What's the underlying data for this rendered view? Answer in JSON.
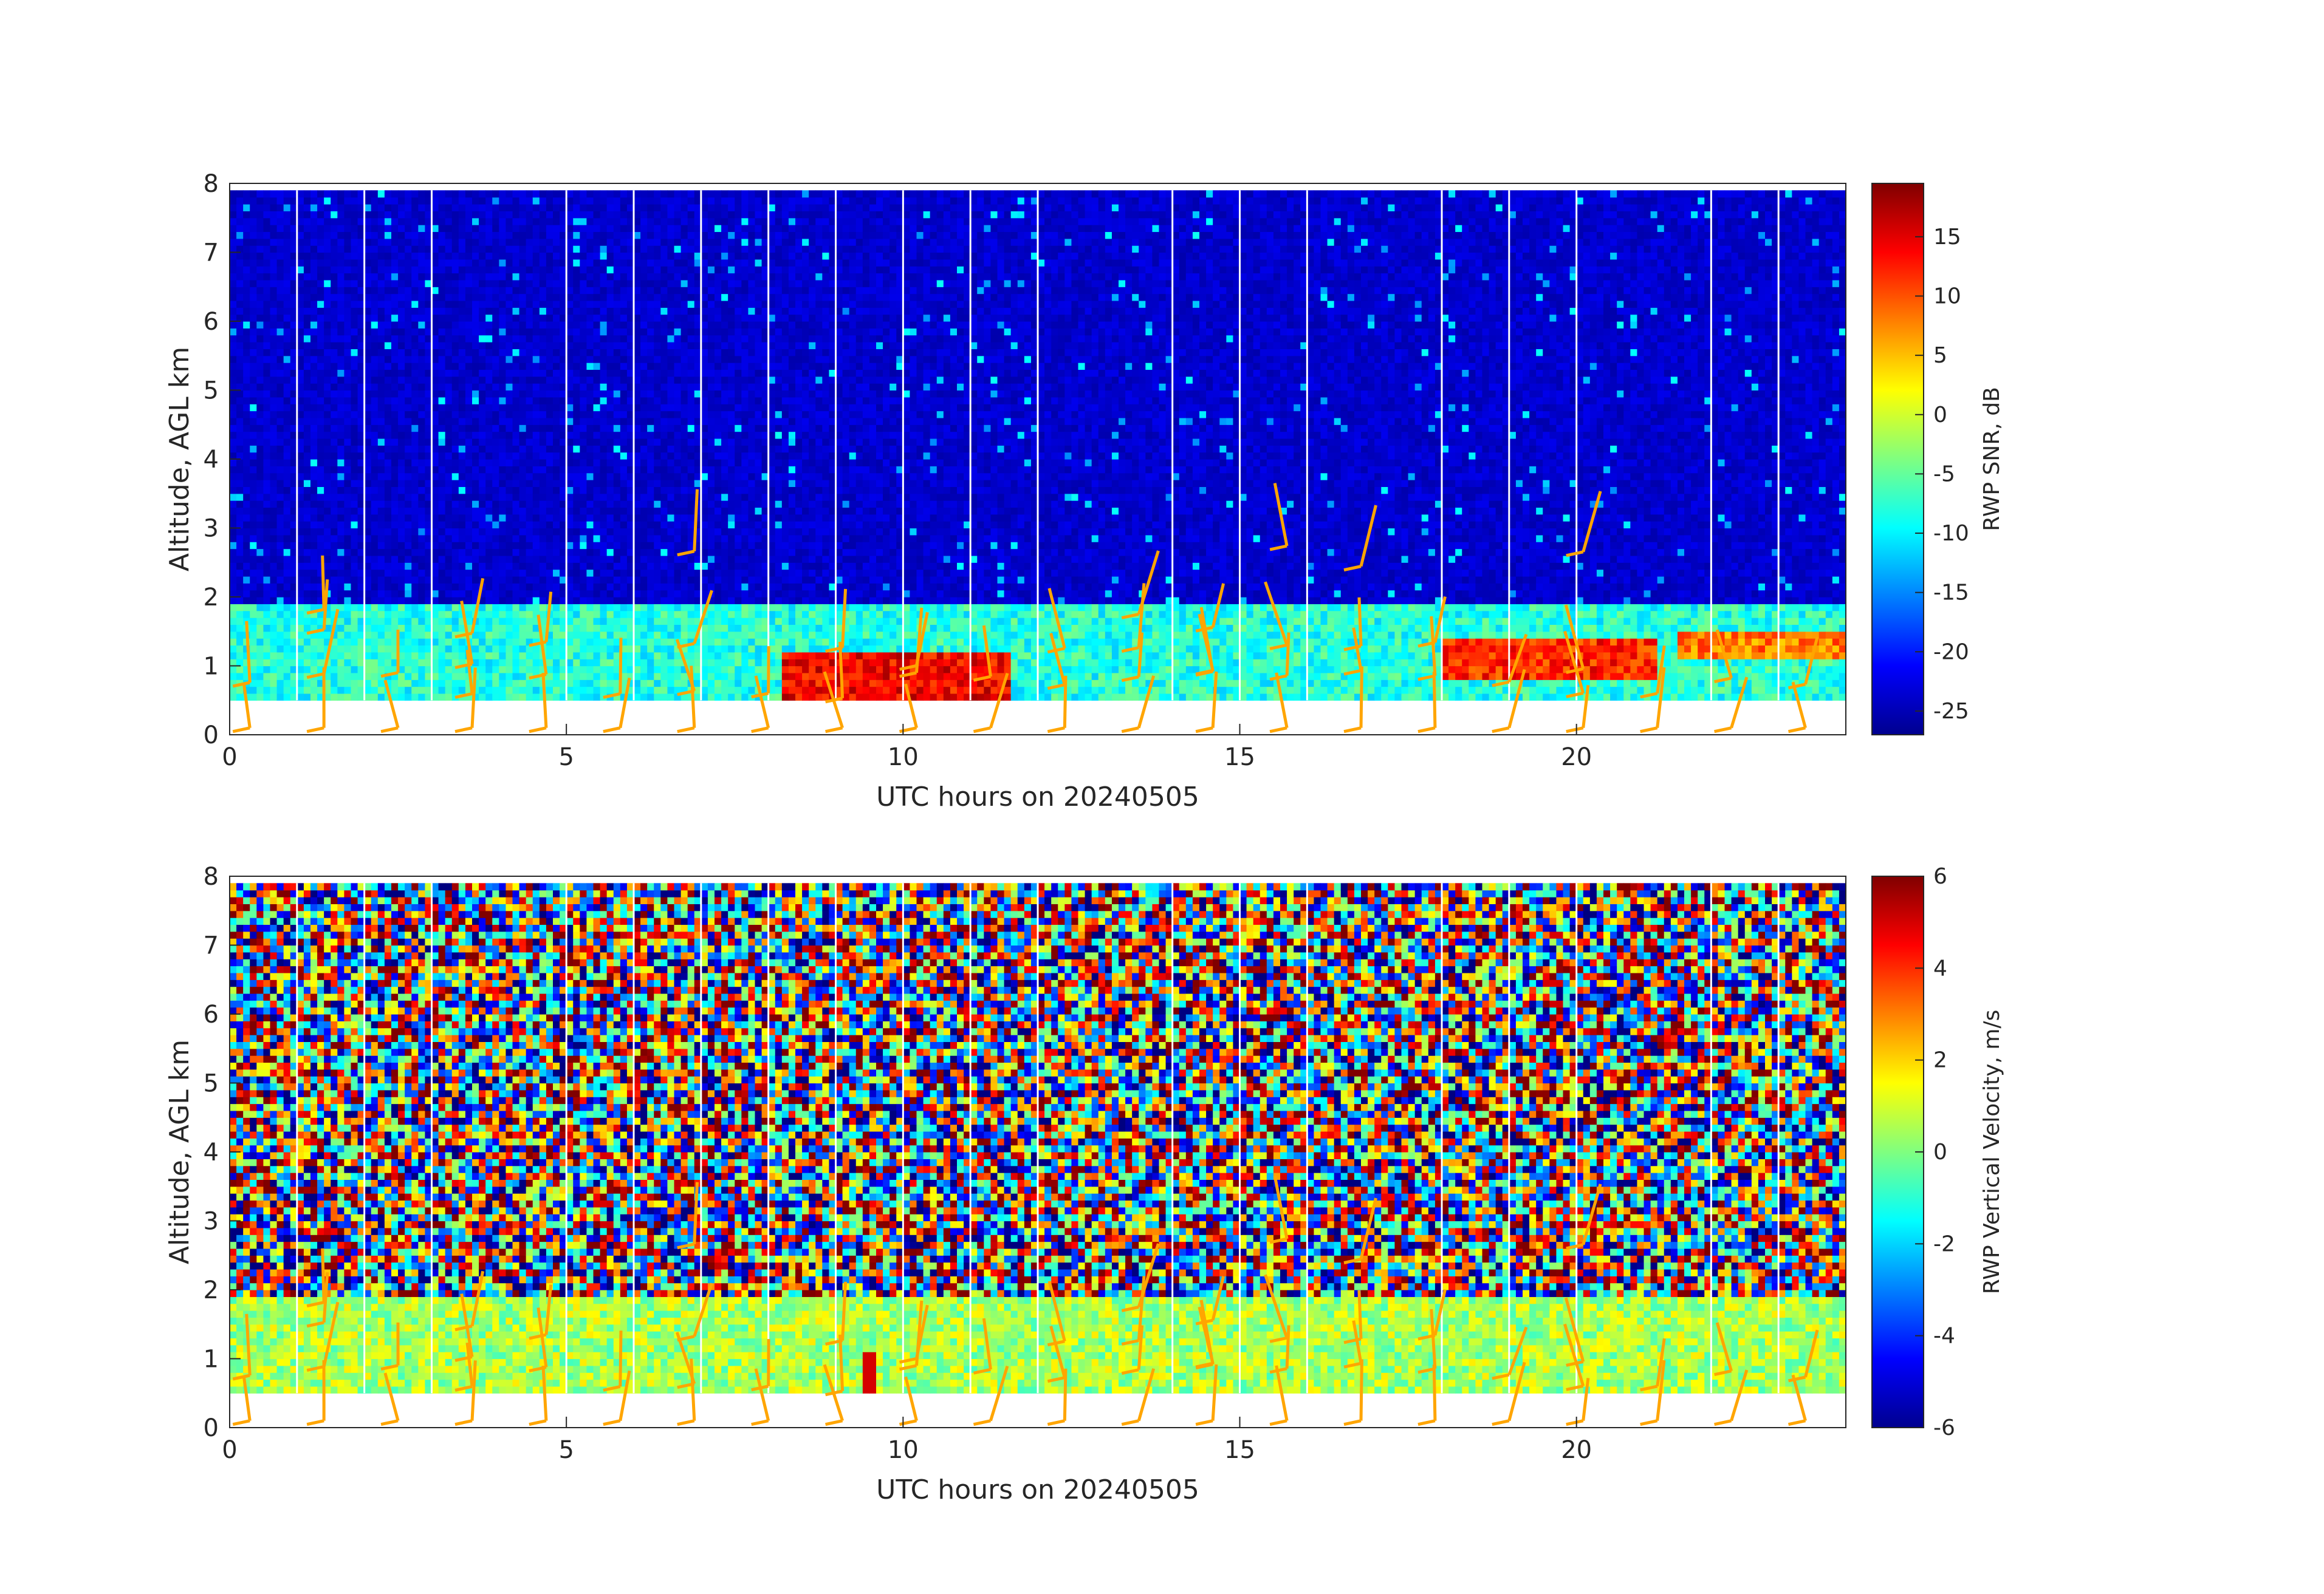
{
  "chart_data": [
    {
      "type": "heatmap",
      "panel": "top",
      "xlabel": "UTC hours on 20240505",
      "ylabel": "Altitude, AGL km",
      "xlim": [
        0,
        24
      ],
      "ylim": [
        0,
        8
      ],
      "xticks": [
        0,
        5,
        10,
        15,
        20
      ],
      "yticks": [
        0,
        1,
        2,
        3,
        4,
        5,
        6,
        7,
        8
      ],
      "colormap": "jet",
      "colorbar": {
        "label": "RWP SNR, dB",
        "clim": [
          -27,
          19.5
        ],
        "ticks": [
          15,
          10,
          5,
          0,
          -5,
          -10,
          -15,
          -20,
          -25
        ]
      },
      "data_altitude_range_km": [
        0.5,
        7.9
      ],
      "gap_lines_hours": [
        1,
        2,
        3,
        5,
        6,
        7,
        8,
        9,
        10,
        11,
        12,
        14,
        15,
        16,
        18,
        19,
        20,
        22,
        23
      ],
      "features": [
        {
          "description": "low boundary layer return",
          "hours": [
            0,
            24
          ],
          "alt_km": [
            0.5,
            1.9
          ],
          "value_dB": -8
        },
        {
          "description": "strong echo",
          "hours": [
            8.2,
            11.5
          ],
          "alt_km": [
            0.5,
            1.1
          ],
          "value_dB": 14
        },
        {
          "description": "strong echo",
          "hours": [
            18,
            21.2
          ],
          "alt_km": [
            0.8,
            1.3
          ],
          "value_dB": 12
        },
        {
          "description": "moderate layer",
          "hours": [
            21.5,
            24
          ],
          "alt_km": [
            1.1,
            1.4
          ],
          "value_dB": 8
        }
      ],
      "wind_barb_color": "#ffa500"
    },
    {
      "type": "heatmap",
      "panel": "bottom",
      "xlabel": "UTC hours on 20240505",
      "ylabel": "Altitude, AGL km",
      "xlim": [
        0,
        24
      ],
      "ylim": [
        0,
        8
      ],
      "xticks": [
        0,
        5,
        10,
        15,
        20
      ],
      "yticks": [
        0,
        1,
        2,
        3,
        4,
        5,
        6,
        7,
        8
      ],
      "colormap": "jet",
      "colorbar": {
        "label": "RWP Vertical Velocity, m/s",
        "clim": [
          -6,
          6
        ],
        "ticks": [
          6,
          4,
          2,
          0,
          -2,
          -4,
          -6
        ]
      },
      "data_altitude_range_km": [
        0.5,
        7.9
      ],
      "gap_lines_hours": [
        1,
        2,
        3,
        5,
        6,
        7,
        8,
        9,
        10,
        11,
        12,
        14,
        15,
        16,
        18,
        19,
        20,
        22,
        23
      ],
      "features": [
        {
          "description": "near-zero velocity layer",
          "hours": [
            0,
            24
          ],
          "alt_km": [
            0.5,
            1.9
          ],
          "value_ms": 1
        },
        {
          "description": "noisy velocities aloft",
          "hours": [
            0,
            24
          ],
          "alt_km": [
            1.9,
            7.9
          ],
          "value_ms": "random ±6"
        }
      ],
      "wind_barb_color": "#ffa500"
    }
  ]
}
